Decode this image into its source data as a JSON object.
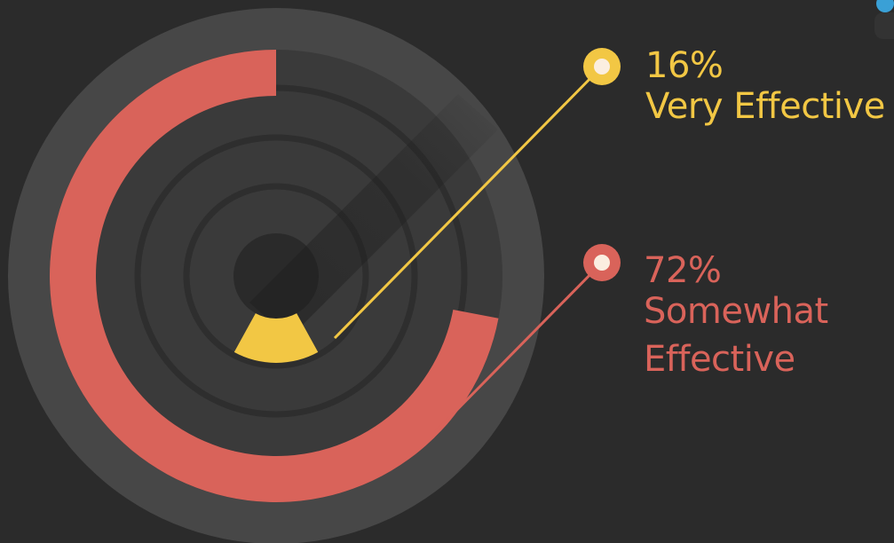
{
  "chart_data": {
    "type": "radial-bar",
    "series": [
      {
        "percent_label": "72%",
        "category_label": [
          "Somewhat",
          "Effective"
        ],
        "value": 72,
        "color": "#d9635a"
      },
      {
        "percent_label": "16%",
        "category_label": [
          "Very Effective"
        ],
        "value": 16,
        "color": "#f2c744"
      }
    ]
  },
  "colors": {
    "background": "#2b2b2b",
    "outer_ring": "#474747",
    "inner_track": "#3a3a3a",
    "groove": "#2e2e2e",
    "center": "#2a2a2a",
    "marker_inner": "#fbeee0",
    "accent_blue": "#3aa0d6"
  }
}
